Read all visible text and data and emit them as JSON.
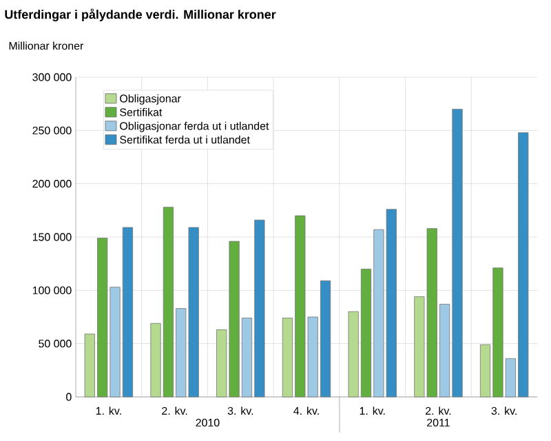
{
  "chart_data": {
    "type": "bar",
    "title": "Utferdingar i pålydande verdi. Millionar kroner",
    "ylabel": "Millionar kroner",
    "categories": [
      "1. kv.",
      "2. kv.",
      "3. kv.",
      "4. kv.",
      "1. kv.",
      "2. kv.",
      "3. kv."
    ],
    "annotations": [
      "2010",
      "2011"
    ],
    "series": [
      {
        "name": "Obligasjonar",
        "color": "#b5da8f",
        "values": [
          59000,
          69000,
          63000,
          74000,
          80000,
          94000,
          49000
        ]
      },
      {
        "name": "Sertifikat",
        "color": "#62ae3f",
        "values": [
          149000,
          178000,
          146000,
          170000,
          120000,
          158000,
          121000
        ]
      },
      {
        "name": "Obligasjonar ferda ut i utlandet",
        "color": "#9ec9e4",
        "values": [
          103000,
          83000,
          74000,
          75000,
          157000,
          87000,
          36000
        ]
      },
      {
        "name": "Sertifikat ferda ut i utlandet",
        "color": "#358ec4",
        "values": [
          159000,
          159000,
          166000,
          109000,
          176000,
          270000,
          248000
        ]
      }
    ],
    "ylim": [
      0,
      300000
    ],
    "yticks": [
      0,
      {
        "value": 50000,
        "label": "50 000"
      },
      {
        "value": 100000,
        "label": "100 000"
      },
      {
        "value": 150000,
        "label": "150 000"
      },
      {
        "value": 200000,
        "label": "200 000"
      },
      {
        "value": 250000,
        "label": "250 000"
      },
      {
        "value": 300000,
        "label": "300 000"
      }
    ],
    "grid": true,
    "legend": "top left"
  }
}
